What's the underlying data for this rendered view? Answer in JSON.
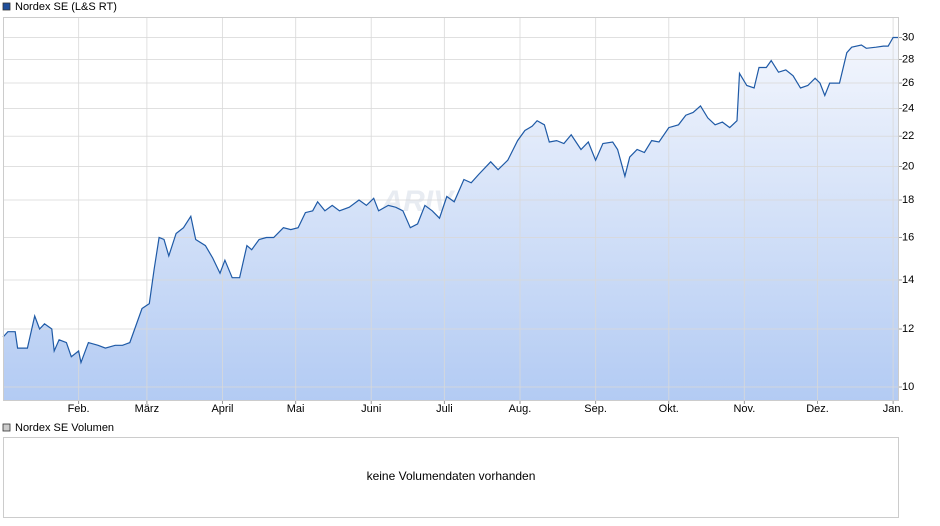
{
  "chart_data": {
    "type": "line",
    "legend_label": "Nordex SE (L&S RT)",
    "watermark": "ARIVA.DE",
    "x": [
      0,
      2,
      5,
      6,
      10,
      13,
      15,
      17,
      20,
      21,
      23,
      26,
      28,
      31,
      32,
      35,
      39,
      42,
      46,
      49,
      52,
      54,
      57,
      60,
      62,
      64,
      66,
      68,
      71,
      74,
      77,
      79,
      83,
      86,
      89,
      91,
      94,
      97,
      100,
      102,
      105,
      108,
      111,
      115,
      118,
      121,
      124,
      127,
      129,
      132,
      135,
      138,
      142,
      146,
      149,
      152,
      154,
      158,
      161,
      164,
      167,
      170,
      173,
      176,
      179,
      182,
      185,
      189,
      192,
      195,
      200,
      203,
      207,
      211,
      214,
      217,
      219,
      222,
      224,
      227,
      230,
      233,
      237,
      240,
      243,
      246,
      250,
      252,
      255,
      257,
      260,
      263,
      266,
      269,
      273,
      277,
      280,
      283,
      286,
      289,
      292,
      295,
      298,
      301,
      302,
      305,
      308,
      310,
      313,
      315,
      318,
      321,
      324,
      327,
      330,
      333,
      335,
      337,
      339,
      343,
      346,
      348,
      352,
      354,
      358,
      361,
      363,
      365,
      367
    ],
    "series": [
      {
        "name": "Nordex SE (L&S RT)",
        "color": "#1f5aa6",
        "values": [
          11.7,
          11.9,
          11.9,
          11.3,
          11.3,
          12.5,
          12.0,
          12.2,
          12.0,
          11.2,
          11.6,
          11.5,
          11.0,
          11.2,
          10.8,
          11.5,
          11.4,
          11.3,
          11.4,
          11.4,
          11.5,
          12.0,
          12.8,
          13.0,
          14.5,
          16.0,
          15.9,
          15.1,
          16.2,
          16.5,
          17.1,
          15.9,
          15.6,
          15.0,
          14.3,
          14.9,
          14.1,
          14.1,
          15.6,
          15.4,
          15.9,
          16.0,
          16.0,
          16.5,
          16.4,
          16.5,
          17.3,
          17.4,
          17.9,
          17.4,
          17.7,
          17.4,
          17.6,
          18.0,
          17.7,
          18.1,
          17.4,
          17.7,
          17.6,
          17.4,
          16.5,
          16.7,
          17.7,
          17.4,
          17.0,
          18.2,
          17.9,
          19.2,
          19.0,
          19.5,
          20.3,
          19.8,
          20.4,
          21.7,
          22.4,
          22.7,
          23.1,
          22.8,
          21.6,
          21.7,
          21.5,
          22.1,
          21.1,
          21.6,
          20.4,
          21.5,
          21.6,
          21.1,
          19.4,
          20.6,
          21.1,
          20.9,
          21.7,
          21.6,
          22.6,
          22.8,
          23.5,
          23.7,
          24.2,
          23.3,
          22.8,
          23.0,
          22.6,
          23.1,
          26.8,
          25.8,
          25.6,
          27.3,
          27.3,
          27.9,
          26.9,
          27.1,
          26.6,
          25.6,
          25.8,
          26.4,
          26.0,
          25.0,
          26.0,
          26.0,
          28.6,
          29.1,
          29.3,
          29.0,
          29.1,
          29.2,
          29.2,
          30.0,
          30.0
        ]
      }
    ],
    "xlim": [
      0,
      367
    ],
    "xticks": [
      {
        "value": 31,
        "label": "Feb."
      },
      {
        "value": 59,
        "label": "März"
      },
      {
        "value": 90,
        "label": "April"
      },
      {
        "value": 120,
        "label": "Mai"
      },
      {
        "value": 151,
        "label": "Juni"
      },
      {
        "value": 181,
        "label": "Juli"
      },
      {
        "value": 212,
        "label": "Aug."
      },
      {
        "value": 243,
        "label": "Sep."
      },
      {
        "value": 273,
        "label": "Okt."
      },
      {
        "value": 304,
        "label": "Nov."
      },
      {
        "value": 334,
        "label": "Dez."
      },
      {
        "value": 365,
        "label": "Jan."
      }
    ],
    "ylim": [
      9.6,
      32
    ],
    "yticks": [
      10,
      12,
      14,
      16,
      18,
      20,
      22,
      24,
      26,
      28,
      30
    ],
    "log_scale": true,
    "grid": true
  },
  "volume_panel": {
    "legend_label": "Nordex SE Volumen",
    "message": "keine Volumendaten vorhanden"
  }
}
